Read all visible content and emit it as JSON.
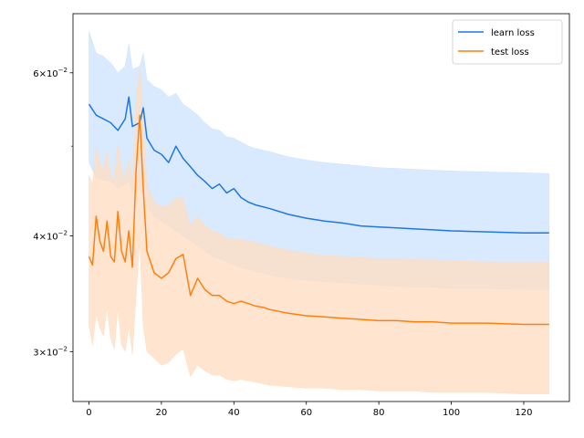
{
  "chart_data": {
    "type": "line",
    "title": "",
    "xlabel": "",
    "ylabel": "",
    "yscale": "log",
    "xlim": [
      -4.4,
      132.6
    ],
    "ylim": [
      0.0265,
      0.0695
    ],
    "grid": false,
    "legend_position": "top-right",
    "x_ticks": [
      0,
      20,
      40,
      60,
      80,
      100,
      120
    ],
    "x_tick_labels": [
      "0",
      "20",
      "40",
      "60",
      "80",
      "100",
      "120"
    ],
    "y_ticks": [
      0.03,
      0.04,
      0.06
    ],
    "y_tick_labels": [
      {
        "mantissa": "3",
        "base": "10",
        "exp": "−2"
      },
      {
        "mantissa": "4",
        "base": "10",
        "exp": "−2"
      },
      {
        "mantissa": "6",
        "base": "10",
        "exp": "−2"
      }
    ],
    "y_minor_ticks": [
      0.05
    ],
    "series": [
      {
        "name": "learn loss",
        "color": "#1f77e0",
        "band_color": "#cce3ff",
        "x": [
          0,
          2,
          4,
          6,
          8,
          10,
          11,
          12,
          14,
          15,
          16,
          18,
          20,
          22,
          24,
          26,
          28,
          30,
          32,
          34,
          36,
          38,
          40,
          42,
          44,
          46,
          48,
          50,
          55,
          60,
          65,
          70,
          75,
          80,
          85,
          90,
          95,
          100,
          110,
          120,
          127
        ],
        "values": [
          0.0555,
          0.054,
          0.0535,
          0.053,
          0.052,
          0.0535,
          0.0565,
          0.0525,
          0.053,
          0.055,
          0.051,
          0.0495,
          0.049,
          0.048,
          0.05,
          0.0485,
          0.0475,
          0.0465,
          0.0458,
          0.045,
          0.0455,
          0.0445,
          0.045,
          0.044,
          0.0435,
          0.0432,
          0.043,
          0.0428,
          0.0422,
          0.0418,
          0.0415,
          0.0413,
          0.041,
          0.0409,
          0.0408,
          0.0407,
          0.0406,
          0.0405,
          0.0404,
          0.0403,
          0.0403
        ],
        "lower": [
          0.048,
          0.0462,
          0.046,
          0.0458,
          0.045,
          0.0455,
          0.0458,
          0.0445,
          0.045,
          0.0445,
          0.043,
          0.042,
          0.0415,
          0.041,
          0.0405,
          0.04,
          0.0395,
          0.039,
          0.0385,
          0.038,
          0.0378,
          0.0375,
          0.0372,
          0.037,
          0.0368,
          0.0366,
          0.0365,
          0.0363,
          0.036,
          0.0358,
          0.0357,
          0.0356,
          0.0355,
          0.0354,
          0.0353,
          0.0352,
          0.0352,
          0.0351,
          0.0351,
          0.035,
          0.035
        ],
        "upper": [
          0.0665,
          0.063,
          0.0625,
          0.0615,
          0.06,
          0.061,
          0.0645,
          0.0605,
          0.061,
          0.063,
          0.059,
          0.058,
          0.0575,
          0.0565,
          0.057,
          0.0555,
          0.0548,
          0.054,
          0.053,
          0.0522,
          0.052,
          0.0512,
          0.051,
          0.0505,
          0.05,
          0.0497,
          0.0495,
          0.0493,
          0.0487,
          0.0483,
          0.048,
          0.0478,
          0.0476,
          0.0474,
          0.0473,
          0.0472,
          0.0471,
          0.047,
          0.0469,
          0.0468,
          0.0467
        ]
      },
      {
        "name": "test loss",
        "color": "#ff7f0e",
        "band_color": "#ffdcc0",
        "x": [
          0,
          1,
          2,
          3,
          4,
          5,
          6,
          7,
          8,
          9,
          10,
          11,
          12,
          13,
          14,
          15,
          16,
          18,
          20,
          22,
          24,
          26,
          28,
          30,
          32,
          34,
          36,
          38,
          40,
          42,
          44,
          46,
          48,
          50,
          55,
          60,
          65,
          70,
          75,
          80,
          85,
          90,
          95,
          100,
          110,
          120,
          127
        ],
        "values": [
          0.038,
          0.0372,
          0.042,
          0.0395,
          0.0385,
          0.0415,
          0.038,
          0.0375,
          0.0425,
          0.0385,
          0.0375,
          0.0405,
          0.037,
          0.047,
          0.054,
          0.045,
          0.0385,
          0.0365,
          0.036,
          0.0365,
          0.0378,
          0.0382,
          0.0345,
          0.036,
          0.035,
          0.0345,
          0.0345,
          0.034,
          0.0338,
          0.034,
          0.0338,
          0.0336,
          0.0335,
          0.0333,
          0.033,
          0.0328,
          0.0327,
          0.0326,
          0.0325,
          0.0324,
          0.0324,
          0.0323,
          0.0323,
          0.0322,
          0.0322,
          0.0321,
          0.0321
        ],
        "lower": [
          0.032,
          0.0305,
          0.033,
          0.0318,
          0.0312,
          0.0335,
          0.031,
          0.0302,
          0.0335,
          0.0305,
          0.03,
          0.032,
          0.0298,
          0.0345,
          0.0395,
          0.032,
          0.03,
          0.0295,
          0.029,
          0.0292,
          0.0298,
          0.0302,
          0.0282,
          0.029,
          0.0286,
          0.0283,
          0.0283,
          0.028,
          0.0279,
          0.028,
          0.0279,
          0.0278,
          0.0277,
          0.0276,
          0.0275,
          0.0274,
          0.0274,
          0.0273,
          0.0273,
          0.0272,
          0.0272,
          0.0272,
          0.0271,
          0.0271,
          0.0271,
          0.027,
          0.027
        ],
        "upper": [
          0.0465,
          0.0455,
          0.05,
          0.048,
          0.047,
          0.0495,
          0.0465,
          0.046,
          0.0505,
          0.047,
          0.046,
          0.0485,
          0.0455,
          0.056,
          0.061,
          0.053,
          0.0455,
          0.0435,
          0.043,
          0.0432,
          0.044,
          0.0438,
          0.041,
          0.042,
          0.041,
          0.0405,
          0.0403,
          0.0398,
          0.0396,
          0.0397,
          0.0395,
          0.0393,
          0.0392,
          0.039,
          0.0386,
          0.0383,
          0.0381,
          0.038,
          0.0379,
          0.0378,
          0.0378,
          0.0377,
          0.0377,
          0.0376,
          0.0375,
          0.0375,
          0.0375
        ]
      }
    ]
  }
}
